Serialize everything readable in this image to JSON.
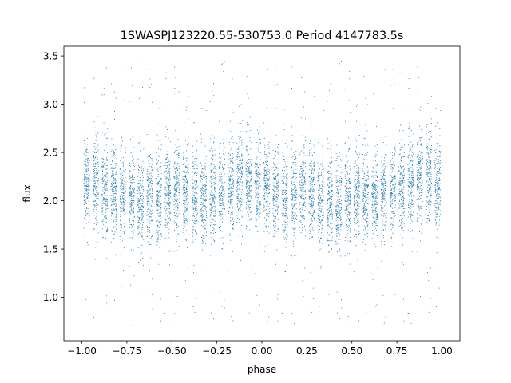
{
  "chart_data": {
    "type": "scatter",
    "title": "1SWASPJ123220.55-530753.0 Period 4147783.5s",
    "xlabel": "phase",
    "ylabel": "flux",
    "xlim": [
      -1.1,
      1.1
    ],
    "ylim": [
      0.55,
      3.6
    ],
    "xticks": [
      -1.0,
      -0.75,
      -0.5,
      -0.25,
      0.0,
      0.25,
      0.5,
      0.75,
      1.0
    ],
    "xtick_labels": [
      "−1.00",
      "−0.75",
      "−0.50",
      "−0.25",
      "0.00",
      "0.25",
      "0.50",
      "0.75",
      "1.00"
    ],
    "yticks": [
      1.0,
      1.5,
      2.0,
      2.5,
      3.0,
      3.5
    ],
    "ytick_labels": [
      "1.0",
      "1.5",
      "2.0",
      "2.5",
      "3.0",
      "3.5"
    ],
    "grid": false,
    "legend": "none",
    "marker_color": "#1f77b4",
    "series": [
      {
        "phase_range": [
          -1.0,
          1.0
        ],
        "cluster_count": 40,
        "points_per_cluster": 200,
        "cluster_center_phases": [
          -0.975,
          -0.925,
          -0.875,
          -0.825,
          -0.775,
          -0.725,
          -0.675,
          -0.625,
          -0.575,
          -0.525,
          -0.475,
          -0.425,
          -0.375,
          -0.325,
          -0.275,
          -0.225,
          -0.175,
          -0.125,
          -0.075,
          -0.025,
          0.025,
          0.075,
          0.125,
          0.175,
          0.225,
          0.275,
          0.325,
          0.375,
          0.425,
          0.475,
          0.525,
          0.575,
          0.625,
          0.675,
          0.725,
          0.775,
          0.825,
          0.875,
          0.925,
          0.975
        ],
        "cluster_center_flux": [
          2.18,
          2.18,
          2.1,
          2.1,
          2.05,
          2.0,
          1.98,
          2.03,
          2.05,
          2.1,
          2.1,
          2.05,
          2.05,
          2.05,
          2.08,
          2.12,
          2.15,
          2.2,
          2.22,
          2.18,
          2.15,
          2.1,
          2.05,
          2.05,
          2.1,
          2.08,
          2.05,
          2.0,
          1.98,
          2.02,
          2.05,
          2.08,
          2.05,
          2.05,
          2.08,
          2.15,
          2.18,
          2.2,
          2.25,
          2.18
        ],
        "flux_spread": 0.42,
        "outlier_range": [
          0.7,
          3.45
        ]
      }
    ]
  }
}
